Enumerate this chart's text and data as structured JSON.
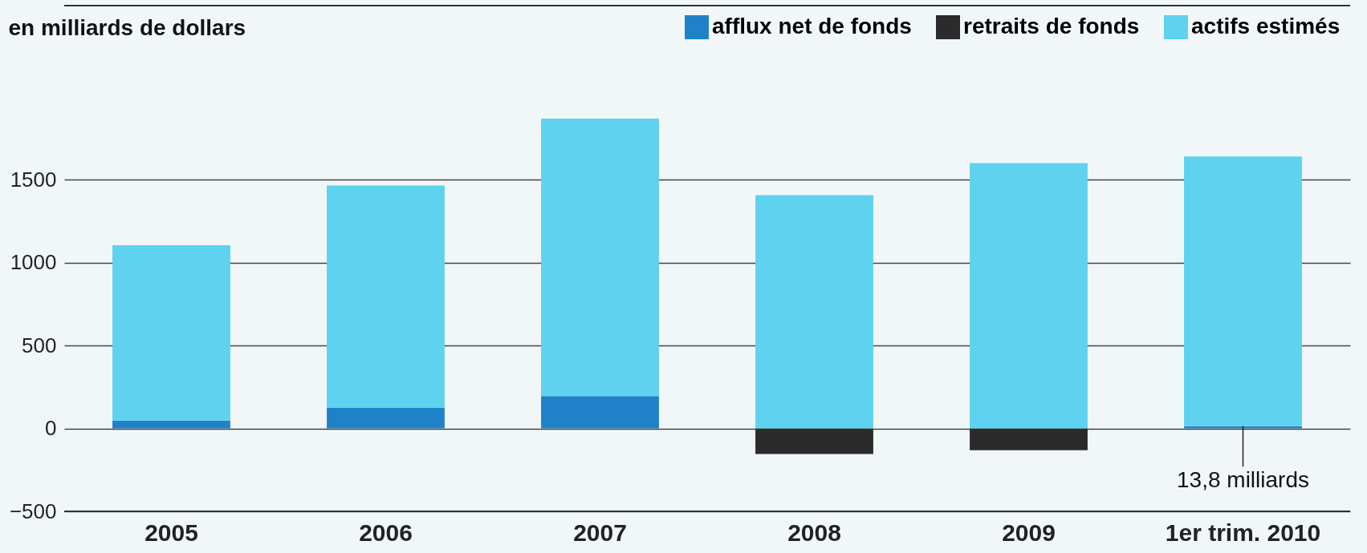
{
  "chart_data": {
    "type": "bar",
    "stacked": true,
    "ylabel": "en milliards de dollars",
    "categories": [
      "2005",
      "2006",
      "2007",
      "2008",
      "2009",
      "1er trim. 2010"
    ],
    "series": [
      {
        "name": "afflux net de fonds",
        "color": "#1f82c8",
        "values": [
          47,
          126,
          195,
          null,
          null,
          14
        ]
      },
      {
        "name": "retraits de fonds",
        "color": "#2b2b2b",
        "values": [
          null,
          null,
          null,
          -155,
          -131,
          null
        ]
      },
      {
        "name": "actifs estimés",
        "color": "#5ed2ee",
        "values": [
          1058,
          1339,
          1673,
          1407,
          1600,
          1626
        ]
      }
    ],
    "ylim": [
      -500,
      2550
    ],
    "yticks": [
      -500,
      0,
      500,
      1000,
      1500
    ],
    "grid": "y",
    "legend": "top right",
    "annotations": [
      {
        "text": "13,8 milliards",
        "x": "1er trim. 2010",
        "y": 13.8
      }
    ]
  }
}
